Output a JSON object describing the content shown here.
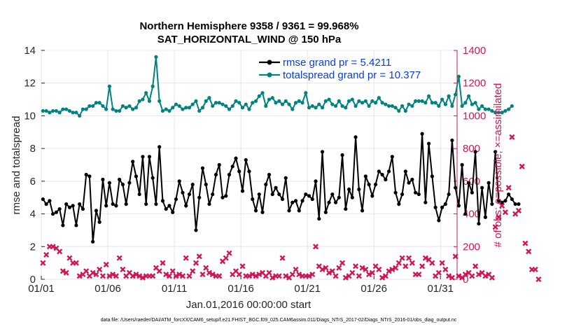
{
  "chart_data": {
    "type": "line",
    "title_line1": "Northern Hemisphere 9358 / 9361 = 99.968%",
    "title_line2": "SAT_HORIZONTAL_WIND @ 150 hPa",
    "xlabel": "Jan.01,2016 00:00:00 start",
    "ylabel_left": "rmse and totalspread",
    "ylabel_right": "# of obs: o=possible; ×=assimilated",
    "footer": "data file: /Users/raeder/DAI/ATM_forcXX/CAM6_setup/f.e21.FHIST_BGC.f09_025.CAM6assim.011/Diags_NTrS_2017-02/Diags_NTrS_2016-01/obs_diag_output.nc",
    "x_ticks": [
      "01/01",
      "01/06",
      "01/11",
      "01/16",
      "01/21",
      "01/26",
      "01/31"
    ],
    "x_tick_days": [
      0,
      5,
      10,
      15,
      20,
      25,
      30
    ],
    "x_range": [
      0,
      31.25
    ],
    "ylim_left": [
      0,
      14
    ],
    "yticks_left": [
      "0",
      "2",
      "4",
      "6",
      "8",
      "10",
      "12",
      "14"
    ],
    "ylim_right": [
      0,
      1400
    ],
    "yticks_right": [
      "0",
      "200",
      "400",
      "600",
      "800",
      "1000",
      "1200",
      "1400"
    ],
    "grid": true,
    "legend_position": "top-right",
    "series": [
      {
        "name": "rmse grand pr = 5.4211",
        "color": "#000000",
        "axis": "left",
        "values": [
          4.9,
          4.6,
          4.8,
          4.0,
          4.1,
          4.3,
          3.3,
          4.6,
          4.4,
          4.5,
          3.3,
          4.6,
          4.3,
          6.4,
          6.3,
          2.3,
          4.2,
          3.5,
          6.1,
          4.5,
          5.9,
          4.6,
          4.5,
          6.1,
          5.8,
          4.6,
          5.9,
          7.2,
          6.3,
          5.2,
          7.5,
          4.6,
          7.5,
          6.2,
          4.6,
          8.1,
          4.8,
          4.3,
          4.5,
          4.1,
          4.9,
          6.0,
          5.3,
          4.5,
          5.2,
          5.8,
          3.0,
          5.0,
          6.8,
          5.8,
          4.6,
          5.2,
          6.4,
          7.0,
          5.0,
          5.1,
          6.4,
          6.9,
          7.4,
          6.6,
          5.4,
          7.3,
          6.6,
          4.9,
          4.2,
          5.2,
          4.1,
          5.8,
          6.4,
          5.2,
          5.6,
          5.2,
          4.9,
          6.2,
          4.2,
          4.7,
          4.8,
          4.2,
          4.8,
          5.2,
          5.1,
          4.9,
          6.0,
          3.7,
          7.8,
          4.1,
          4.7,
          5.2,
          4.7,
          5.0,
          7.6,
          4.3,
          5.5,
          5.0,
          8.7,
          5.5,
          4.2,
          6.3,
          5.8,
          5.1,
          5.8,
          6.6,
          6.4,
          6.1,
          6.6,
          7.5,
          5.3,
          4.6,
          5.2,
          6.6,
          5.9,
          6.1,
          5.3,
          5.2,
          8.9,
          4.7,
          8.3,
          6.3,
          4.4,
          3.6,
          4.4,
          4.6,
          5.2,
          8.5,
          5.6,
          4.5,
          7.0,
          4.0,
          5.9,
          5.3,
          7.8,
          3.4,
          5.6,
          3.8,
          5.9,
          4.6,
          7.8,
          4.8,
          4.7,
          4.8,
          5.2,
          4.9,
          4.6,
          4.6
        ],
        "display_value_1": "rmse grand pr = 5.4211",
        "display_value_2": "totalspread grand pr = 10.377"
      },
      {
        "name": "totalspread grand pr = 10.377",
        "color": "#00827f",
        "axis": "left",
        "values": [
          10.3,
          10.3,
          10.2,
          10.3,
          10.3,
          10.2,
          10.4,
          10.4,
          10.3,
          10.2,
          10.2,
          10.0,
          10.4,
          10.4,
          10.6,
          10.6,
          10.8,
          10.8,
          10.6,
          10.4,
          11.8,
          10.4,
          10.3,
          10.3,
          10.6,
          10.5,
          10.6,
          10.4,
          10.5,
          10.9,
          11.0,
          11.4,
          10.9,
          11.8,
          13.6,
          10.9,
          10.3,
          10.4,
          10.3,
          10.5,
          10.7,
          10.6,
          10.4,
          10.5,
          10.5,
          10.7,
          10.9,
          10.3,
          10.5,
          10.9,
          11.1,
          10.6,
          10.8,
          10.8,
          10.7,
          10.6,
          10.4,
          10.6,
          10.9,
          10.8,
          10.5,
          10.7,
          10.4,
          10.8,
          10.9,
          11.2,
          11.4,
          10.6,
          11.0,
          11.1,
          10.8,
          10.9,
          10.7,
          10.9,
          10.7,
          10.4,
          10.8,
          10.9,
          10.8,
          11.4,
          10.5,
          10.6,
          10.5,
          10.7,
          10.5,
          10.9,
          11.0,
          10.7,
          10.6,
          10.9,
          10.6,
          10.5,
          10.9,
          11.0,
          10.6,
          10.9,
          10.8,
          10.9,
          10.6,
          10.9,
          10.8,
          11.1,
          10.8,
          10.7,
          10.6,
          10.6,
          10.5,
          10.3,
          10.6,
          10.3,
          10.7,
          10.6,
          10.9,
          10.9,
          10.9,
          10.8,
          11.2,
          10.8,
          10.8,
          10.6,
          11.0,
          10.7,
          11.2,
          10.6,
          11.3,
          12.4,
          10.6,
          10.8,
          11.2,
          10.7,
          10.8,
          10.4,
          10.6,
          10.4,
          10.4,
          10.3,
          10.2,
          10.2,
          10.2,
          10.3,
          10.4,
          10.6
        ]
      },
      {
        "name": "assimilated observations",
        "color": "#d01656",
        "axis": "right",
        "values": [
          100,
          150,
          200,
          200,
          190,
          170,
          50,
          40,
          130,
          100,
          100,
          20,
          30,
          50,
          20,
          40,
          30,
          60,
          20,
          90,
          20,
          30,
          20,
          130,
          60,
          20,
          40,
          20,
          30,
          20,
          10,
          20,
          20,
          20,
          70,
          50,
          100,
          30,
          20,
          50,
          20,
          30,
          20,
          130,
          20,
          50,
          100,
          140,
          30,
          70,
          40,
          30,
          20,
          20,
          110,
          130,
          160,
          30,
          50,
          30,
          80,
          20,
          20,
          30,
          20,
          30,
          40,
          20,
          40,
          10,
          20,
          20,
          130,
          20,
          10,
          30,
          60,
          30,
          20,
          20,
          20,
          30,
          200,
          80,
          60,
          70,
          40,
          50,
          20,
          70,
          100,
          10,
          20,
          40,
          80,
          20,
          70,
          60,
          30,
          40,
          80,
          60,
          10,
          20,
          50,
          60,
          70,
          100,
          130,
          80,
          130,
          100,
          30,
          30,
          80,
          130,
          120,
          100,
          20,
          40,
          100,
          60,
          20,
          10,
          140,
          20,
          10,
          30,
          40,
          20,
          80,
          30,
          40,
          20,
          30,
          10,
          320,
          380,
          450,
          410,
          560,
          870,
          400,
          420,
          690,
          220,
          170,
          60,
          60,
          0
        ]
      }
    ],
    "legend_entries": [
      "rmse grand pr = 5.4211",
      "totalspread grand pr = 10.377"
    ]
  }
}
